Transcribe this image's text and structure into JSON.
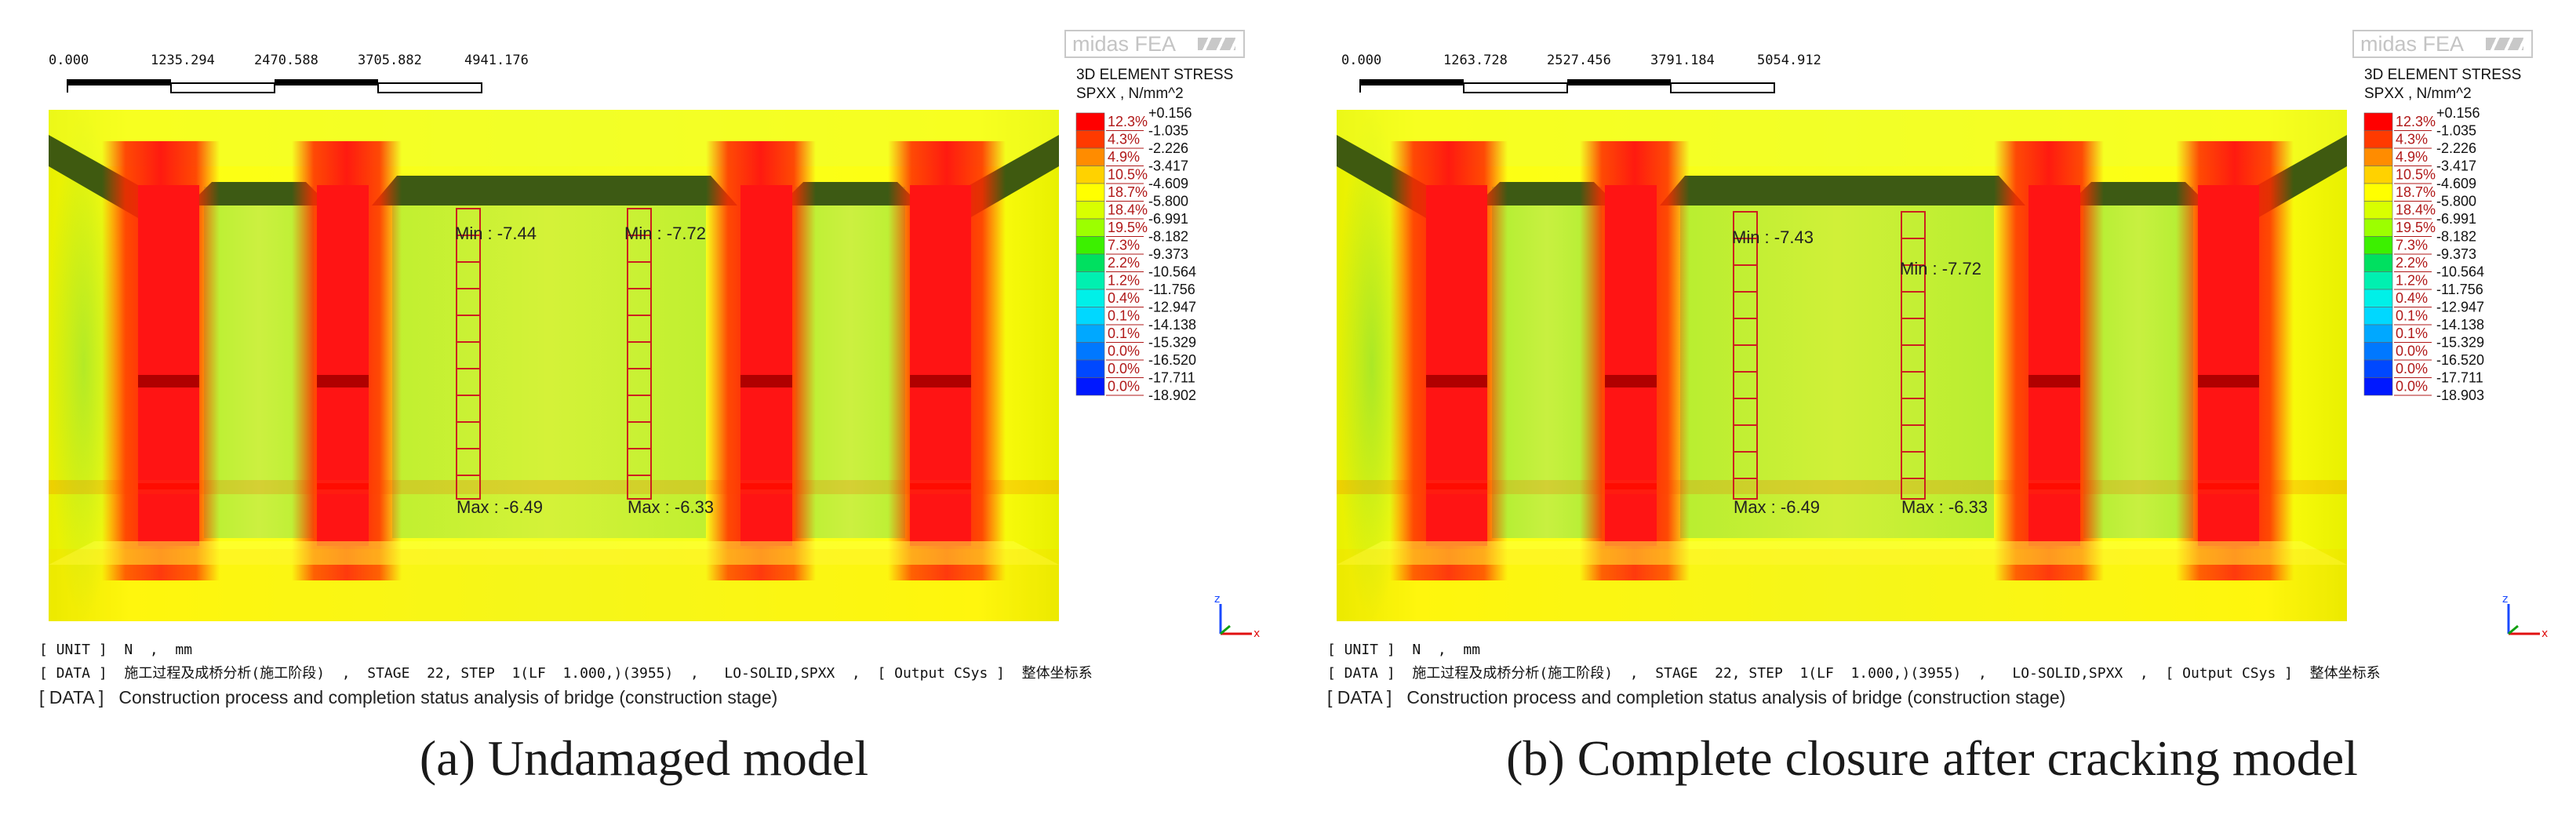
{
  "panels": [
    {
      "logo": "midas FEA",
      "scale": {
        "ticks": [
          "0.000",
          "1235.294",
          "2470.588",
          "3705.882",
          "4941.176"
        ]
      },
      "legend": {
        "title": "3D ELEMENT STRESS",
        "subtitle": "SPXX , N/mm^2",
        "values": [
          "+0.156",
          "-1.035",
          "-2.226",
          "-3.417",
          "-4.609",
          "-5.800",
          "-6.991",
          "-8.182",
          "-9.373",
          "-10.564",
          "-11.756",
          "-12.947",
          "-14.138",
          "-15.329",
          "-16.520",
          "-17.711",
          "-18.902"
        ],
        "percents": [
          "12.3%",
          "4.3%",
          "4.9%",
          "10.5%",
          "18.7%",
          "18.4%",
          "19.5%",
          "7.3%",
          "2.2%",
          "1.2%",
          "0.4%",
          "0.1%",
          "0.1%",
          "0.0%",
          "0.0%",
          "0.0%"
        ],
        "colors": [
          "#ff0000",
          "#ff3a00",
          "#ff8c00",
          "#ffd200",
          "#ffff00",
          "#d8ff00",
          "#9cff00",
          "#3cf000",
          "#00e060",
          "#00f0b0",
          "#00f0e8",
          "#00d8ff",
          "#00a8ff",
          "#0078ff",
          "#0048ff",
          "#0018ff"
        ]
      },
      "labels": {
        "min1": "Min : -7.44",
        "min2": "Min : -7.72",
        "max1": "Max : -6.49",
        "max2": "Max : -6.33"
      },
      "unit_line": "[ UNIT ]  N  ,  mm",
      "data_line": "[ DATA ]  施工过程及成桥分析(施工阶段)  ,  STAGE  22, STEP  1(LF  1.000,)(3955)  ,   LO-SOLID,SPXX  ,  [ Output CSys ]  整体坐标系",
      "data_caption": "[ DATA ]   Construction process and completion status analysis of bridge (construction stage)",
      "caption": "(a) Undamaged model"
    },
    {
      "logo": "midas FEA",
      "scale": {
        "ticks": [
          "0.000",
          "1263.728",
          "2527.456",
          "3791.184",
          "5054.912"
        ]
      },
      "legend": {
        "title": "3D ELEMENT STRESS",
        "subtitle": "SPXX , N/mm^2",
        "values": [
          "+0.156",
          "-1.035",
          "-2.226",
          "-3.417",
          "-4.609",
          "-5.800",
          "-6.991",
          "-8.182",
          "-9.373",
          "-10.564",
          "-11.756",
          "-12.947",
          "-14.138",
          "-15.329",
          "-16.520",
          "-17.711",
          "-18.903"
        ],
        "percents": [
          "12.3%",
          "4.3%",
          "4.9%",
          "10.5%",
          "18.7%",
          "18.4%",
          "19.5%",
          "7.3%",
          "2.2%",
          "1.2%",
          "0.4%",
          "0.1%",
          "0.1%",
          "0.0%",
          "0.0%",
          "0.0%"
        ],
        "colors": [
          "#ff0000",
          "#ff3a00",
          "#ff8c00",
          "#ffd200",
          "#ffff00",
          "#d8ff00",
          "#9cff00",
          "#3cf000",
          "#00e060",
          "#00f0b0",
          "#00f0e8",
          "#00d8ff",
          "#00a8ff",
          "#0078ff",
          "#0048ff",
          "#0018ff"
        ]
      },
      "labels": {
        "min1": "Min : -7.43",
        "min2": "Min : -7.72",
        "max1": "Max : -6.49",
        "max2": "Max : -6.33"
      },
      "unit_line": "[ UNIT ]  N  ,  mm",
      "data_line": "[ DATA ]  施工过程及成桥分析(施工阶段)  ,  STAGE  22, STEP  1(LF  1.000,)(3955)  ,   LO-SOLID,SPXX  ,  [ Output CSys ]  整体坐标系",
      "data_caption": "[ DATA ]   Construction process and completion status analysis of bridge (construction stage)",
      "caption": "(b) Complete closure after cracking model"
    }
  ]
}
